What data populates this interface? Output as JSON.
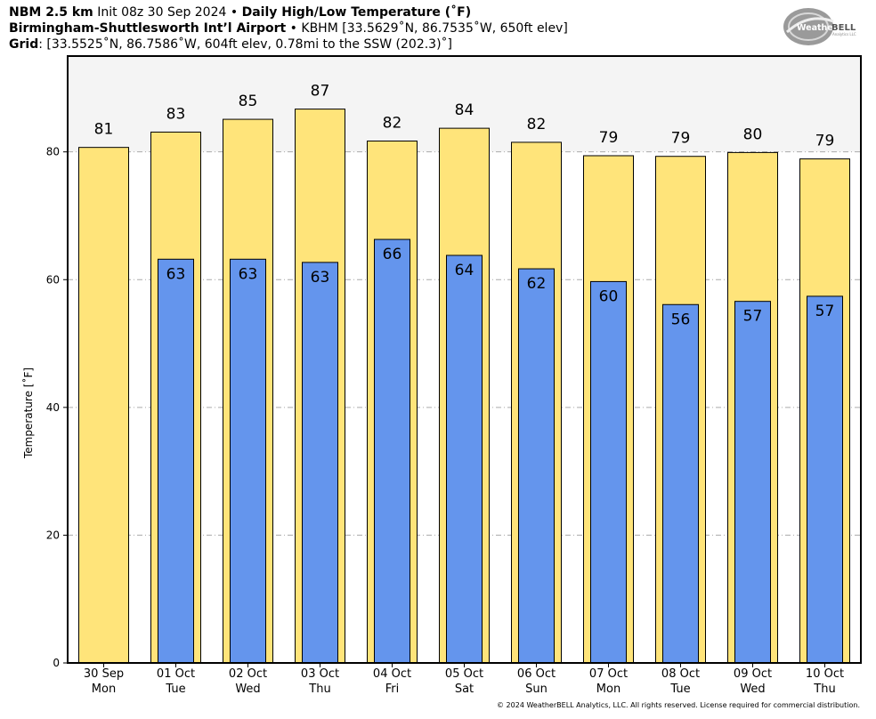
{
  "header": {
    "line1_bold_a": "NBM 2.5 km",
    "line1_plain_a": " Init 08z 30 Sep 2024",
    "line1_sep": " • ",
    "line1_bold_b": "Daily High/Low Temperature (˚F)",
    "line2_bold": "Birmingham-Shuttlesworth Int’l Airport",
    "line2_sep": " • ",
    "line2_plain": "KBHM [33.5629˚N, 86.7535˚W, 650ft elev]",
    "line3_bold": "Grid",
    "line3_plain": ": [33.5525˚N, 86.7586˚W, 604ft elev, 0.78mi to the SSW (202.3)˚]"
  },
  "logo": {
    "text_a": "Weather",
    "text_b": "BELL",
    "sub": "Analytics LLC"
  },
  "footer": "© 2024 WeatherBELL Analytics, LLC. All rights reserved. License required for commercial distribution.",
  "colors": {
    "high_bar": "#ffe47a",
    "low_bar": "#6495ed",
    "upper_band": "#f4f4f4",
    "grid": "#aaaaaa"
  },
  "chart_data": {
    "type": "bar",
    "title": "Daily High/Low Temperature (˚F)",
    "ylabel": "Temperature [˚F]",
    "xlabel": "",
    "ylim": [
      0,
      95
    ],
    "yticks": [
      0,
      20,
      40,
      60,
      80
    ],
    "grid": "horizontal dashed",
    "categories": [
      "30 Sep",
      "01 Oct",
      "02 Oct",
      "03 Oct",
      "04 Oct",
      "05 Oct",
      "06 Oct",
      "07 Oct",
      "08 Oct",
      "09 Oct",
      "10 Oct"
    ],
    "days": [
      "Mon",
      "Tue",
      "Wed",
      "Thu",
      "Fri",
      "Sat",
      "Sun",
      "Mon",
      "Tue",
      "Wed",
      "Thu"
    ],
    "series": [
      {
        "values": [
          80.7,
          83.1,
          85.1,
          86.7,
          81.7,
          83.7,
          81.5,
          79.4,
          79.3,
          79.9,
          78.9
        ],
        "labels": [
          "81",
          "83",
          "85",
          "87",
          "82",
          "84",
          "82",
          "79",
          "79",
          "80",
          "79"
        ]
      },
      {
        "values": [
          null,
          63.2,
          63.2,
          62.7,
          66.3,
          63.8,
          61.7,
          59.7,
          56.1,
          56.6,
          57.4
        ],
        "labels": [
          "",
          "63",
          "63",
          "63",
          "66",
          "64",
          "62",
          "60",
          "56",
          "57",
          "57"
        ]
      }
    ]
  }
}
